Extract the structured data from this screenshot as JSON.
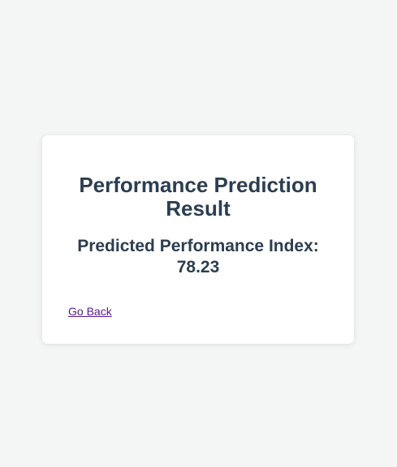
{
  "card": {
    "title": "Performance Prediction Result",
    "result_label": "Predicted Performance Index:",
    "result_value": "78.23",
    "back_link": "Go Back"
  }
}
